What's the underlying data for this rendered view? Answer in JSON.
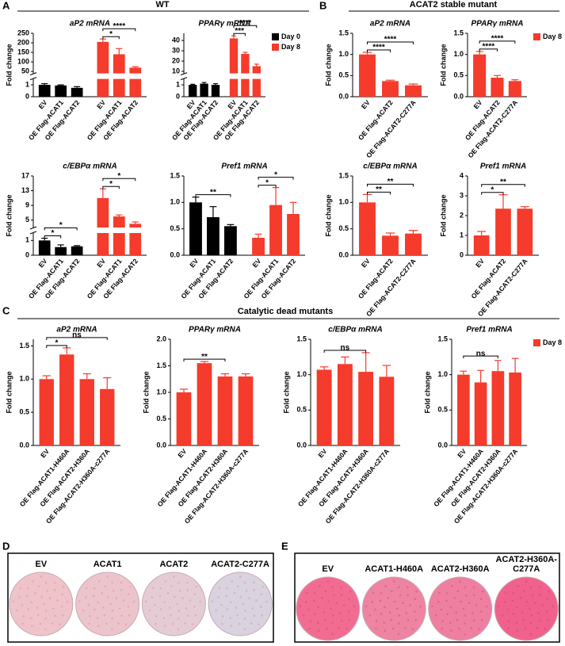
{
  "panels": [
    {
      "label": "A",
      "title": "WT"
    },
    {
      "label": "B",
      "title": "ACAT2 stable mutant"
    },
    {
      "label": "C",
      "title": "Catalytic dead mutants"
    },
    {
      "label": "D",
      "captions": [
        "EV",
        "ACAT1",
        "ACAT2",
        "ACAT2-C277A"
      ]
    },
    {
      "label": "E",
      "captions": [
        "EV",
        "ACAT1-H460A",
        "ACAT2-H360A",
        "ACAT2-H360A-C277A"
      ]
    }
  ],
  "chart_data": [
    {
      "type": "bar",
      "title": "aP2 mRNA",
      "ylabel": "Fold change",
      "categories": [
        "EV",
        "OE Flag-ACAT1",
        "OE Flag-ACAT2"
      ],
      "series": [
        {
          "name": "Day 0",
          "color": "#000000",
          "values": [
            1.0,
            0.95,
            0.75
          ],
          "errors": [
            0.1,
            0.05,
            0.1
          ]
        },
        {
          "name": "Day 8",
          "color": "#f43b2c",
          "values": [
            205,
            140,
            70
          ],
          "errors": [
            15,
            30,
            5
          ]
        }
      ],
      "ylim": [
        [
          0,
          1.5
        ],
        [
          40,
          250
        ]
      ],
      "yticks": [
        [
          0,
          1
        ],
        [
          50,
          100,
          150,
          200,
          250
        ]
      ],
      "significance": [
        {
          "series": "Day 8",
          "between": [
            "EV",
            "OE Flag-ACAT1"
          ],
          "label": "*"
        },
        {
          "series": "Day 8",
          "between": [
            "EV",
            "OE Flag-ACAT2"
          ],
          "label": "****"
        }
      ]
    },
    {
      "type": "bar",
      "title": "PPARγ mRNA",
      "legend": "right",
      "categories": [
        "EV",
        "OE Flag-ACAT1",
        "OE Flag-ACAT2"
      ],
      "series": [
        {
          "name": "Day 0",
          "color": "#000000",
          "values": [
            1.0,
            1.1,
            1.0
          ],
          "errors": [
            0.05,
            0.1,
            0.1
          ]
        },
        {
          "name": "Day 8",
          "color": "#f43b2c",
          "values": [
            42,
            27,
            15
          ],
          "errors": [
            2.5,
            1.5,
            2
          ]
        }
      ],
      "ylim": [
        [
          0,
          1.5
        ],
        [
          8,
          47
        ]
      ],
      "yticks": [
        [
          0,
          1
        ],
        [
          10,
          20,
          30,
          40
        ]
      ],
      "significance": [
        {
          "series": "Day 8",
          "between": [
            "EV",
            "OE Flag-ACAT1"
          ],
          "label": "***"
        },
        {
          "series": "Day 8",
          "between": [
            "EV",
            "OE Flag-ACAT2"
          ],
          "label": "****"
        }
      ]
    },
    {
      "type": "bar",
      "title": "c/EBPα mRNA",
      "ylabel": "Fold change",
      "categories": [
        "EV",
        "OE Flag-ACAT1",
        "OE Flag-ACAT2"
      ],
      "series": [
        {
          "name": "Day 0",
          "color": "#000000",
          "values": [
            1.0,
            0.55,
            0.6
          ],
          "errors": [
            0.15,
            0.15,
            0.05
          ]
        },
        {
          "name": "Day 8",
          "color": "#f43b2c",
          "values": [
            11,
            6,
            4
          ],
          "errors": [
            2.5,
            0.4,
            0.5
          ]
        }
      ],
      "ylim": [
        [
          0,
          1.5
        ],
        [
          3,
          17
        ]
      ],
      "yticks": [
        [
          0,
          1
        ],
        [
          5,
          9,
          13,
          17
        ]
      ],
      "significance": [
        {
          "series": "Day 0",
          "between": [
            "EV",
            "OE Flag-ACAT1"
          ],
          "label": "*"
        },
        {
          "series": "Day 0",
          "between": [
            "EV",
            "OE Flag-ACAT2"
          ],
          "label": "*"
        },
        {
          "series": "Day 8",
          "between": [
            "EV",
            "OE Flag-ACAT1"
          ],
          "label": "*"
        },
        {
          "series": "Day 8",
          "between": [
            "EV",
            "OE Flag-ACAT2"
          ],
          "label": "*"
        }
      ]
    },
    {
      "type": "bar",
      "title": "Pref1 mRNA",
      "categories": [
        "EV",
        "OE Flag-ACAT1",
        "OE Flag-ACAT2"
      ],
      "series": [
        {
          "name": "Day 0",
          "color": "#000000",
          "values": [
            1.0,
            0.72,
            0.55
          ],
          "errors": [
            0.1,
            0.2,
            0.03
          ]
        },
        {
          "name": "Day 8",
          "color": "#f43b2c",
          "values": [
            0.33,
            0.95,
            0.78
          ],
          "errors": [
            0.07,
            0.33,
            0.22
          ]
        }
      ],
      "ylim": [
        0,
        1.5
      ],
      "yticks": [
        {
          "value": 0,
          "label": "0.0"
        },
        0.5,
        {
          "value": 1,
          "label": "1.0"
        },
        1.5
      ],
      "significance": [
        {
          "series": "Day 0",
          "between": [
            "EV",
            "OE Flag-ACAT2"
          ],
          "label": "**"
        },
        {
          "series": "Day 8",
          "between": [
            "EV",
            "OE Flag-ACAT1"
          ],
          "label": "*"
        },
        {
          "series": "Day 8",
          "between": [
            "EV",
            "OE Flag-ACAT2"
          ],
          "label": "*"
        }
      ]
    },
    {
      "type": "bar",
      "title": "aP2 mRNA",
      "ylabel": "Fold change",
      "categories": [
        "EV",
        "OE Flag-ACAT2",
        "OE Flag-ACAT2-C277A"
      ],
      "series": [
        {
          "name": "Day 8",
          "color": "#f43b2c",
          "values": [
            1.0,
            0.37,
            0.27
          ],
          "errors": [
            0.05,
            0.02,
            0.03
          ]
        }
      ],
      "ylim": [
        0,
        1.5
      ],
      "yticks": [
        {
          "value": 0,
          "label": "0.0"
        },
        0.5,
        {
          "value": 1,
          "label": "1.0"
        },
        1.5
      ],
      "significance": [
        {
          "series": "Day 8",
          "between": [
            "EV",
            "OE Flag-ACAT2"
          ],
          "label": "****"
        },
        {
          "series": "Day 8",
          "between": [
            "EV",
            "OE Flag-ACAT2-C277A"
          ],
          "label": "****"
        }
      ]
    },
    {
      "type": "bar",
      "title": "PPARγ mRNA",
      "ylabel": "Fold change",
      "legend": "right",
      "categories": [
        "EV",
        "OE Flag-ACAT2",
        "OE Flag-ACAT2-C277A"
      ],
      "series": [
        {
          "name": "Day 8",
          "color": "#f43b2c",
          "values": [
            1.0,
            0.45,
            0.37
          ],
          "errors": [
            0.07,
            0.05,
            0.03
          ]
        }
      ],
      "ylim": [
        0,
        1.5
      ],
      "yticks": [
        {
          "value": 0,
          "label": "0.0"
        },
        0.5,
        {
          "value": 1,
          "label": "1.0"
        },
        1.5
      ],
      "significance": [
        {
          "series": "Day 8",
          "between": [
            "EV",
            "OE Flag-ACAT2"
          ],
          "label": "****"
        },
        {
          "series": "Day 8",
          "between": [
            "EV",
            "OE Flag-ACAT2-C277A"
          ],
          "label": "****"
        }
      ]
    },
    {
      "type": "bar",
      "title": "c/EBPα mRNA",
      "ylabel": "Fold change",
      "categories": [
        "EV",
        "OE Flag-ACAT2",
        "OE Flag-ACAT2-C277A"
      ],
      "series": [
        {
          "name": "Day 8",
          "color": "#f43b2c",
          "values": [
            1.0,
            0.37,
            0.41
          ],
          "errors": [
            0.15,
            0.05,
            0.06
          ]
        }
      ],
      "ylim": [
        0,
        1.5
      ],
      "yticks": [
        {
          "value": 0,
          "label": "0.0"
        },
        0.5,
        {
          "value": 1,
          "label": "1.0"
        },
        1.5
      ],
      "significance": [
        {
          "series": "Day 8",
          "between": [
            "EV",
            "OE Flag-ACAT2"
          ],
          "label": "**"
        },
        {
          "series": "Day 8",
          "between": [
            "EV",
            "OE Flag-ACAT2-C277A"
          ],
          "label": "**"
        }
      ]
    },
    {
      "type": "bar",
      "title": "Pref1 mRNA",
      "ylabel": "Fold change",
      "categories": [
        "EV",
        "OE Flag-ACAT2",
        "OE Flag-ACAT2-C277A"
      ],
      "series": [
        {
          "name": "Day 8",
          "color": "#f43b2c",
          "values": [
            1.0,
            2.35,
            2.35
          ],
          "errors": [
            0.2,
            0.7,
            0.1
          ]
        }
      ],
      "ylim": [
        0,
        4
      ],
      "yticks": [
        0,
        1,
        2,
        3,
        4
      ],
      "significance": [
        {
          "series": "Day 8",
          "between": [
            "EV",
            "OE Flag-ACAT2"
          ],
          "label": "*"
        },
        {
          "series": "Day 8",
          "between": [
            "EV",
            "OE Flag-ACAT2-C277A"
          ],
          "label": "**"
        }
      ]
    },
    {
      "type": "bar",
      "title": "aP2 mRNA",
      "ylabel": "Fold change",
      "categories": [
        "EV",
        "OE Flag-ACAT1-H460A",
        "OE Flag-ACAT2-H360A",
        "OE Flag-ACAT2-H360A-c277A"
      ],
      "series": [
        {
          "name": "Day 8",
          "color": "#f43b2c",
          "values": [
            1.0,
            1.37,
            1.0,
            0.85
          ],
          "errors": [
            0.05,
            0.1,
            0.08,
            0.17
          ]
        }
      ],
      "ylim": [
        0,
        1.6
      ],
      "yticks": [
        {
          "value": 0,
          "label": "0.0"
        },
        0.5,
        {
          "value": 1,
          "label": "1.0"
        },
        1.5
      ],
      "significance": [
        {
          "series": "Day 8",
          "between": [
            "EV",
            "OE Flag-ACAT1-H460A"
          ],
          "label": "*"
        },
        {
          "series": "Day 8",
          "between": [
            "EV",
            "OE Flag-ACAT2-H360A-c277A"
          ],
          "label": "ns"
        }
      ]
    },
    {
      "type": "bar",
      "title": "PPARγ mRNA",
      "ylabel": "Fold change",
      "categories": [
        "EV",
        "OE Flag-ACAT1-H460A",
        "OE Flag-ACAT2-H360A",
        "OE Flag-ACAT2-H360A-c277A"
      ],
      "series": [
        {
          "name": "Day 8",
          "color": "#f43b2c",
          "values": [
            1.0,
            1.55,
            1.3,
            1.3
          ],
          "errors": [
            0.06,
            0.03,
            0.05,
            0.05
          ]
        }
      ],
      "ylim": [
        0,
        2
      ],
      "yticks": [
        {
          "value": 0,
          "label": "0.0"
        },
        0.5,
        {
          "value": 1,
          "label": "1.0"
        },
        1.5,
        {
          "value": 2,
          "label": "2.0"
        }
      ],
      "significance": [
        {
          "series": "Day 8",
          "between": [
            "EV",
            "OE Flag-ACAT2-H360A"
          ],
          "label": "**"
        }
      ]
    },
    {
      "type": "bar",
      "title": "c/EBPα mRNA",
      "ylabel": "Fold change",
      "categories": [
        "EV",
        "OE Flag-ACAT1-H460A",
        "OE Flag-ACAT2-H360A",
        "OE Flag-ACAT2-H360A-c277A"
      ],
      "series": [
        {
          "name": "Day 8",
          "color": "#f43b2c",
          "values": [
            1.07,
            1.15,
            1.04,
            0.97
          ],
          "errors": [
            0.04,
            0.1,
            0.27,
            0.16
          ]
        }
      ],
      "ylim": [
        0,
        1.5
      ],
      "yticks": [
        {
          "value": 0,
          "label": "0.0"
        },
        0.5,
        {
          "value": 1,
          "label": "1.0"
        },
        1.5
      ],
      "significance": [
        {
          "series": "Day 8",
          "between": [
            "EV",
            "OE Flag-ACAT2-H360A"
          ],
          "label": "ns"
        }
      ]
    },
    {
      "type": "bar",
      "title": "Pref1 mRNA",
      "ylabel": "Fold change",
      "legend": "right",
      "categories": [
        "EV",
        "OE Flag-ACAT1-H460A",
        "OE Flag-ACAT2-H360A",
        "OE Flag-ACAT2-H360A-c277A"
      ],
      "series": [
        {
          "name": "Day 8",
          "color": "#f43b2c",
          "values": [
            1.0,
            0.89,
            1.05,
            1.03
          ],
          "errors": [
            0.05,
            0.17,
            0.15,
            0.2
          ]
        }
      ],
      "ylim": [
        0,
        1.5
      ],
      "yticks": [
        {
          "value": 0,
          "label": "0.0"
        },
        0.5,
        {
          "value": 1,
          "label": "1.0"
        },
        1.5
      ],
      "significance": [
        {
          "series": "Day 8",
          "between": [
            "EV",
            "OE Flag-ACAT2-H360A"
          ],
          "label": "ns"
        }
      ]
    }
  ]
}
